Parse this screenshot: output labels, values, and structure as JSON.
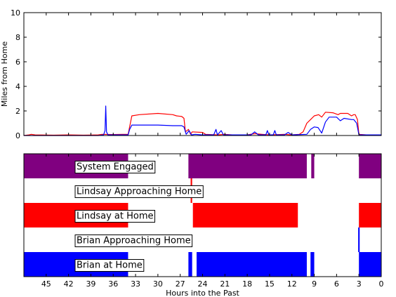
{
  "chart_data": [
    {
      "type": "line",
      "ylabel": "Miles from Home",
      "xlabel": "",
      "xlim": [
        48,
        0
      ],
      "ylim": [
        0,
        10
      ],
      "yticks": [
        0,
        2,
        4,
        6,
        8,
        10
      ],
      "grid": false,
      "series": [
        {
          "color": "#ff0000",
          "points": [
            [
              48,
              0.0
            ],
            [
              47.3,
              0.05
            ],
            [
              47,
              0.1
            ],
            [
              46.5,
              0.05
            ],
            [
              44,
              0.03
            ],
            [
              42,
              0.05
            ],
            [
              40,
              0.03
            ],
            [
              38,
              0.05
            ],
            [
              37.5,
              0.1
            ],
            [
              36,
              0.08
            ],
            [
              34.8,
              0.1
            ],
            [
              34,
              0.1
            ],
            [
              33.8,
              0.7
            ],
            [
              33.5,
              1.6
            ],
            [
              32.5,
              1.7
            ],
            [
              30,
              1.8
            ],
            [
              28,
              1.7
            ],
            [
              27.5,
              1.6
            ],
            [
              26.8,
              1.55
            ],
            [
              26.5,
              1.4
            ],
            [
              26.3,
              0.3
            ],
            [
              25.9,
              0.5
            ],
            [
              25.6,
              0.1
            ],
            [
              25.4,
              0.3
            ],
            [
              24,
              0.25
            ],
            [
              23.6,
              0.1
            ],
            [
              22,
              0.05
            ],
            [
              21,
              0.1
            ],
            [
              20,
              0.05
            ],
            [
              18,
              0.05
            ],
            [
              17,
              0.15
            ],
            [
              16,
              0.1
            ],
            [
              15,
              0.05
            ],
            [
              13,
              0.1
            ],
            [
              12,
              0.05
            ],
            [
              11,
              0.1
            ],
            [
              10.5,
              0.3
            ],
            [
              10,
              1.0
            ],
            [
              9.5,
              1.3
            ],
            [
              9,
              1.6
            ],
            [
              8.4,
              1.7
            ],
            [
              8,
              1.5
            ],
            [
              7.5,
              1.9
            ],
            [
              6.5,
              1.85
            ],
            [
              5.8,
              1.7
            ],
            [
              5.5,
              1.8
            ],
            [
              4.5,
              1.8
            ],
            [
              4,
              1.6
            ],
            [
              3.7,
              1.7
            ],
            [
              3.5,
              1.7
            ],
            [
              3.2,
              1.3
            ],
            [
              3,
              0.1
            ],
            [
              2,
              0.05
            ],
            [
              0,
              0.05
            ]
          ]
        },
        {
          "color": "#0000ff",
          "points": [
            [
              48,
              0.0
            ],
            [
              38,
              0.0
            ],
            [
              37.3,
              0.05
            ],
            [
              37.1,
              0.4
            ],
            [
              37.0,
              2.4
            ],
            [
              36.9,
              0.3
            ],
            [
              36.7,
              0.05
            ],
            [
              34,
              0.05
            ],
            [
              33.8,
              0.5
            ],
            [
              33.5,
              0.85
            ],
            [
              30,
              0.85
            ],
            [
              28,
              0.8
            ],
            [
              27.5,
              0.8
            ],
            [
              26.8,
              0.8
            ],
            [
              26.5,
              0.7
            ],
            [
              26.2,
              0.1
            ],
            [
              25.8,
              0.4
            ],
            [
              25.5,
              0.05
            ],
            [
              25,
              0.1
            ],
            [
              24,
              0.05
            ],
            [
              22.5,
              0.05
            ],
            [
              22.2,
              0.5
            ],
            [
              22,
              0.05
            ],
            [
              21.5,
              0.4
            ],
            [
              21.2,
              0.05
            ],
            [
              19,
              0.05
            ],
            [
              17.5,
              0.05
            ],
            [
              17,
              0.3
            ],
            [
              16.5,
              0.05
            ],
            [
              15.5,
              0.05
            ],
            [
              15.3,
              0.4
            ],
            [
              15.1,
              0.05
            ],
            [
              14.5,
              0.05
            ],
            [
              14.3,
              0.4
            ],
            [
              14.1,
              0.05
            ],
            [
              13,
              0.05
            ],
            [
              12.5,
              0.25
            ],
            [
              12,
              0.05
            ],
            [
              10,
              0.1
            ],
            [
              9.5,
              0.5
            ],
            [
              9,
              0.7
            ],
            [
              8.5,
              0.65
            ],
            [
              8,
              0.2
            ],
            [
              7.5,
              1.1
            ],
            [
              7,
              1.5
            ],
            [
              6,
              1.5
            ],
            [
              5.5,
              1.2
            ],
            [
              5,
              1.4
            ],
            [
              4,
              1.3
            ],
            [
              3.7,
              1.3
            ],
            [
              3.3,
              1.0
            ],
            [
              3,
              0.05
            ],
            [
              0,
              0.05
            ]
          ]
        }
      ]
    },
    {
      "type": "timeline",
      "xlabel": "Hours into the Past",
      "xlim": [
        48,
        0
      ],
      "xticks": [
        45,
        42,
        39,
        36,
        33,
        30,
        27,
        24,
        21,
        18,
        15,
        12,
        9,
        6,
        3,
        0
      ],
      "lanes": [
        {
          "label": "System Engaged",
          "color": "#800080",
          "segments": [
            [
              48,
              34
            ],
            [
              25.9,
              10
            ],
            [
              9.4,
              9
            ],
            [
              3,
              0
            ]
          ]
        },
        {
          "label": "Lindsay Approaching Home",
          "color": "#ff0000",
          "segments": [
            [
              25.6,
              25.4
            ]
          ]
        },
        {
          "label": "Lindsay at Home",
          "color": "#ff0000",
          "segments": [
            [
              48,
              34
            ],
            [
              25.3,
              11.2
            ],
            [
              3,
              0
            ]
          ]
        },
        {
          "label": "Brian Approaching Home",
          "color": "#0000ff",
          "segments": [
            [
              3.1,
              2.9
            ]
          ]
        },
        {
          "label": "Brian at Home",
          "color": "#0000ff",
          "segments": [
            [
              48,
              34
            ],
            [
              25.9,
              25.4
            ],
            [
              24.8,
              10
            ],
            [
              9.5,
              9
            ],
            [
              3,
              0
            ]
          ]
        }
      ]
    }
  ]
}
